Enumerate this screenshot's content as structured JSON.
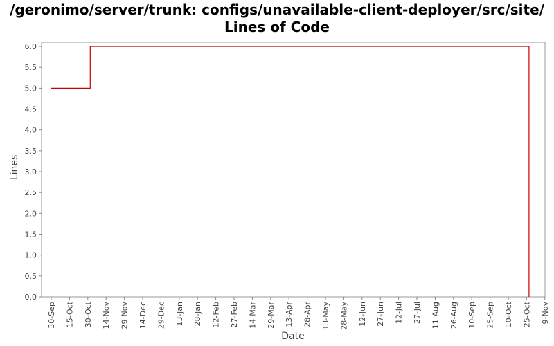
{
  "chart_data": {
    "type": "line",
    "title": "/geronimo/server/trunk: configs/unavailable-client-deployer/src/site/ Lines of Code",
    "xlabel": "Date",
    "ylabel": "Lines",
    "ylim": [
      0.0,
      6.1
    ],
    "y_ticks": [
      "0.0",
      "0.5",
      "1.0",
      "1.5",
      "2.0",
      "2.5",
      "3.0",
      "3.5",
      "4.0",
      "4.5",
      "5.0",
      "5.5",
      "6.0"
    ],
    "x_ticks": [
      "30-Sep",
      "15-Oct",
      "30-Oct",
      "14-Nov",
      "29-Nov",
      "14-Dec",
      "29-Dec",
      "13-Jan",
      "28-Jan",
      "12-Feb",
      "27-Feb",
      "14-Mar",
      "29-Mar",
      "13-Apr",
      "28-Apr",
      "13-May",
      "28-May",
      "12-Jun",
      "27-Jun",
      "12-Jul",
      "27-Jul",
      "11-Aug",
      "26-Aug",
      "10-Sep",
      "25-Sep",
      "10-Oct",
      "25-Oct",
      "9-Nov"
    ],
    "step": true,
    "series": [
      {
        "color": "#cc0000",
        "points": [
          {
            "x": "30-Sep",
            "y": 5
          },
          {
            "x": "1-Nov",
            "y": 5
          },
          {
            "x": "1-Nov",
            "y": 6
          },
          {
            "x": "1-Nov",
            "y": 6
          },
          {
            "x": "1-Nov",
            "y": 0
          }
        ],
        "point_offsets_days": [
          0,
          32,
          32,
          392,
          392
        ]
      }
    ],
    "grid": false,
    "legend": "none"
  }
}
